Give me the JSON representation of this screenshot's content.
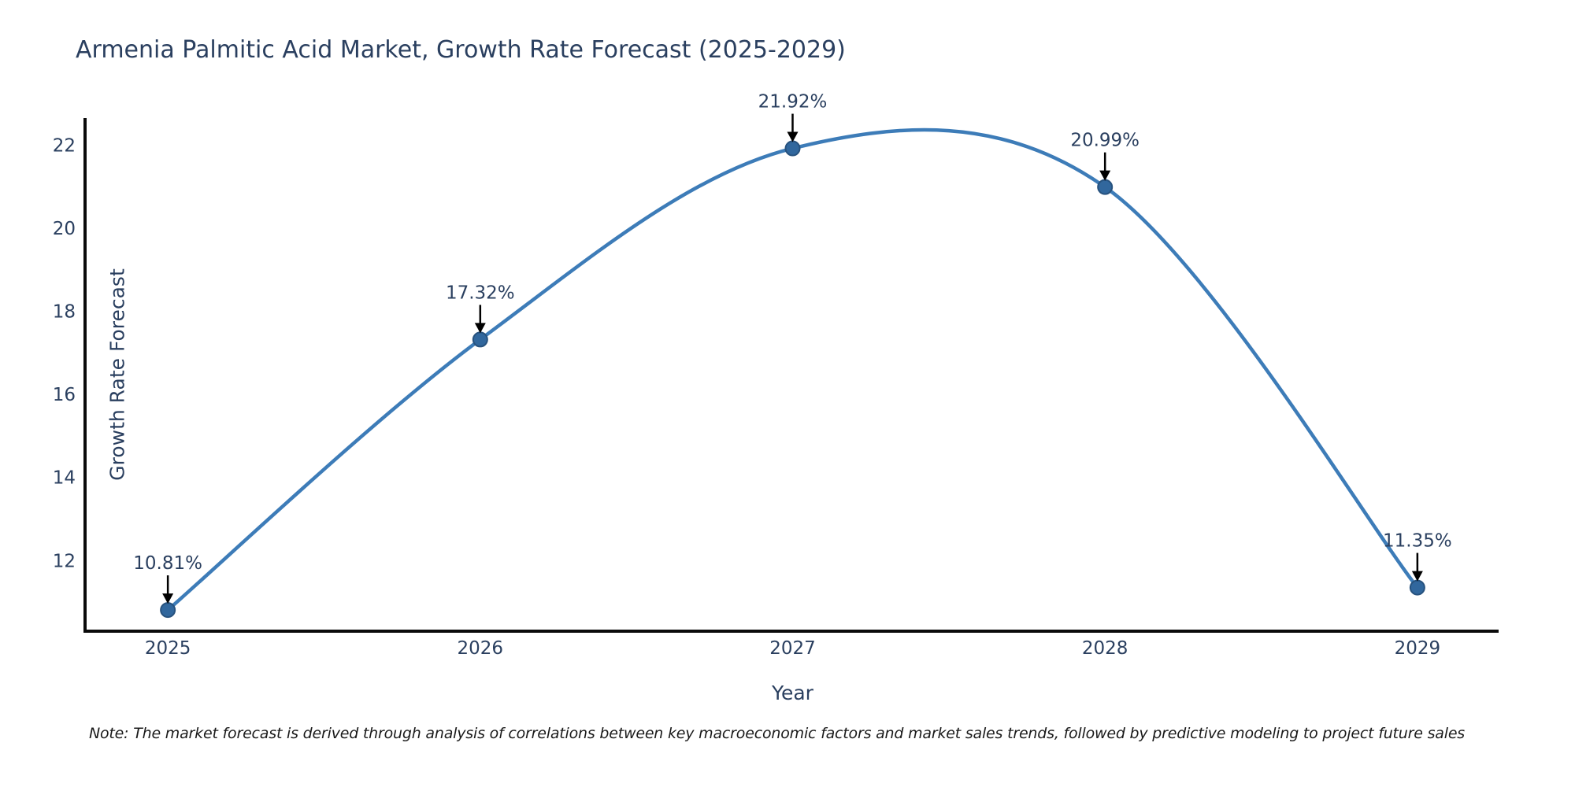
{
  "chart_data": {
    "type": "line",
    "title": "Armenia Palmitic Acid Market, Growth Rate Forecast (2025-2029)",
    "xlabel": "Year",
    "ylabel": "Growth Rate Forecast",
    "x": [
      2025,
      2026,
      2027,
      2028,
      2029
    ],
    "values": [
      10.81,
      17.32,
      21.92,
      20.99,
      11.35
    ],
    "point_labels": [
      "10.81%",
      "17.32%",
      "21.92%",
      "20.99%",
      "11.35%"
    ],
    "series_name": "Growth Rate Forecast",
    "xticks": [
      "2025",
      "2026",
      "2027",
      "2028",
      "2029"
    ],
    "xtick_values": [
      2025,
      2026,
      2027,
      2028,
      2029
    ],
    "yticks": [
      "12",
      "14",
      "16",
      "18",
      "20",
      "22"
    ],
    "ytick_values": [
      12,
      14,
      16,
      18,
      20,
      22
    ],
    "xlim": [
      2024.74,
      2029.26
    ],
    "ylim": [
      10.3,
      22.65
    ],
    "line_shape": "spline",
    "grid": false,
    "legend_position": "none",
    "annotation_arrows": true
  },
  "note": {
    "text": "Note: The market forecast is derived through analysis of correlations between key macroeconomic factors and market sales trends, followed by predictive modeling to project future sales"
  },
  "colors": {
    "line": "#3d7cb8",
    "marker_fill": "#31679d",
    "marker_edge": "#27527e",
    "axis_spine": "#0a0a0a",
    "tick_text": "#2a3f5f",
    "title_text": "#2a3f5f",
    "annotation_text": "#2a3f5f",
    "arrow": "#000000",
    "note_text": "#1a1a1a",
    "background": "#ffffff"
  }
}
